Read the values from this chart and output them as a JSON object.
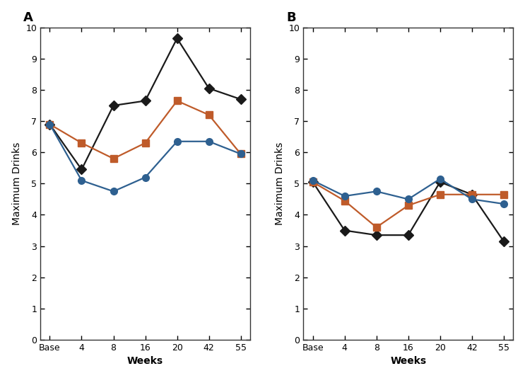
{
  "x_labels": [
    "Base",
    "4",
    "8",
    "16",
    "20",
    "42",
    "55"
  ],
  "x_positions": [
    0,
    1,
    2,
    3,
    4,
    5,
    6
  ],
  "panel_A": {
    "black_diamond": [
      6.9,
      5.45,
      7.5,
      7.65,
      9.65,
      8.05,
      7.7
    ],
    "orange_square": [
      6.9,
      6.3,
      5.8,
      6.3,
      7.65,
      7.2,
      5.95
    ],
    "blue_circle": [
      6.9,
      5.1,
      4.75,
      5.2,
      6.35,
      6.35,
      5.95
    ]
  },
  "panel_B": {
    "black_diamond": [
      5.05,
      3.5,
      3.35,
      3.35,
      5.05,
      4.65,
      3.15
    ],
    "orange_square": [
      5.05,
      4.45,
      3.6,
      4.3,
      4.65,
      4.65,
      4.65
    ],
    "blue_circle": [
      5.1,
      4.6,
      4.75,
      4.5,
      5.15,
      4.5,
      4.35
    ]
  },
  "colors": {
    "black": "#1a1a1a",
    "orange": "#bf5b2a",
    "blue": "#2e6090"
  },
  "ylim": [
    0,
    10
  ],
  "yticks": [
    0,
    1,
    2,
    3,
    4,
    5,
    6,
    7,
    8,
    9,
    10
  ],
  "ylabel": "Maximum Drinks",
  "xlabel": "Weeks",
  "panel_labels": [
    "A",
    "B"
  ],
  "marker_size": 7,
  "linewidth": 1.6
}
